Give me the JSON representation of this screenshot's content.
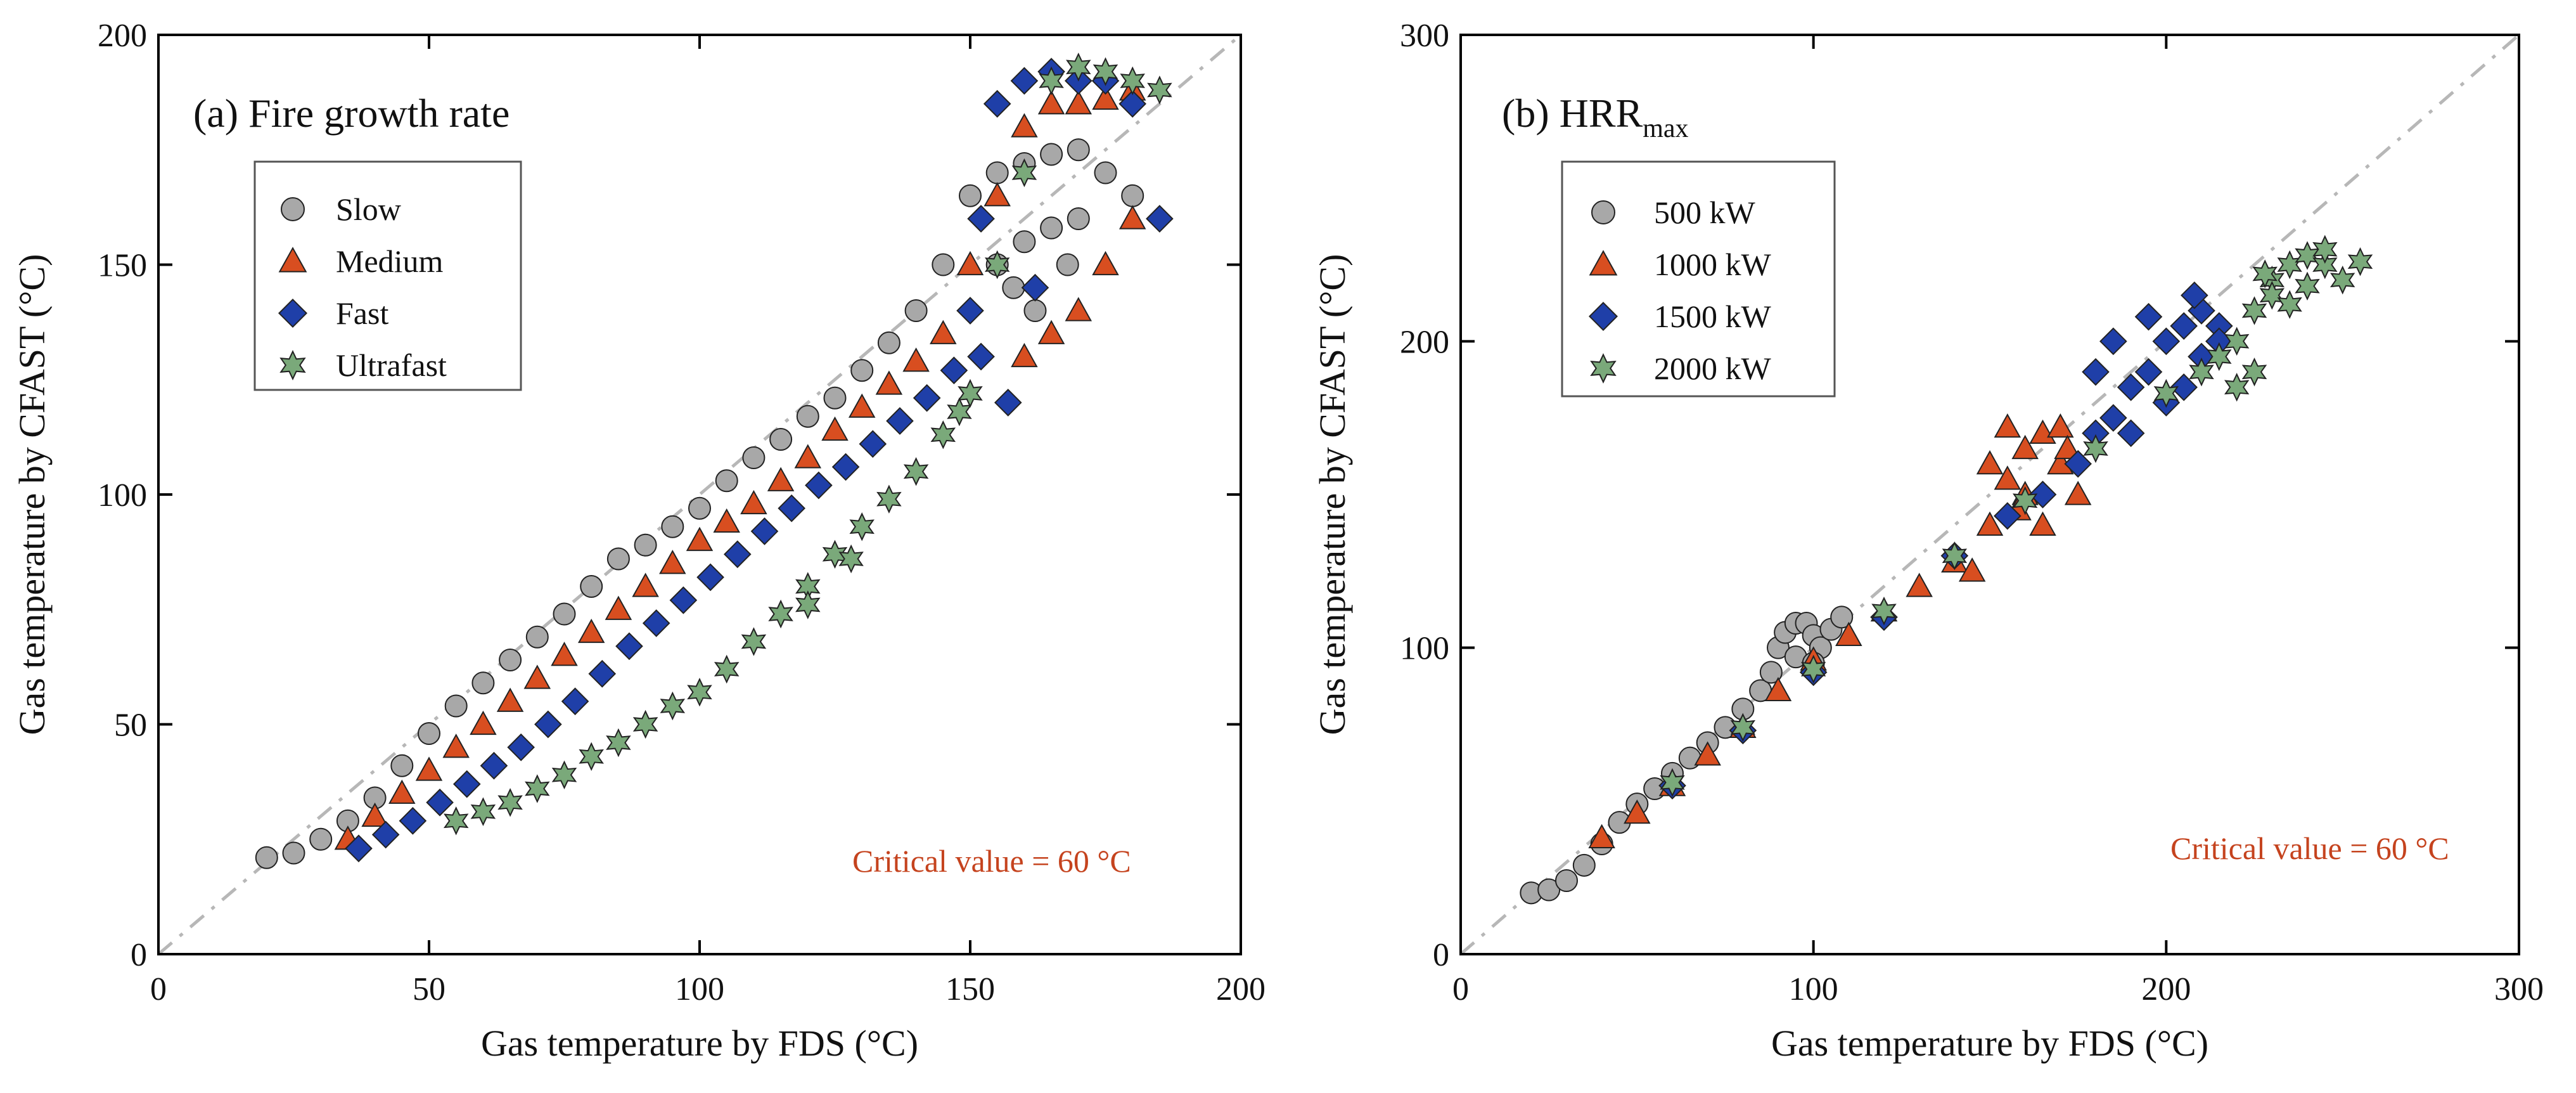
{
  "chart_data": [
    {
      "type": "scatter",
      "panel_title": "(a) Fire growth rate",
      "xlabel": "Gas temperature by FDS (°C)",
      "ylabel": "Gas temperature by CFAST (°C)",
      "xlim": [
        0,
        200
      ],
      "ylim": [
        0,
        200
      ],
      "xticks": [
        "0",
        "50",
        "100",
        "150",
        "200"
      ],
      "yticks": [
        "0",
        "50",
        "100",
        "150",
        "200"
      ],
      "annotation": "Critical value = 60 °C",
      "reference_line": "y = x",
      "series": [
        {
          "name": "Slow",
          "marker": "circle",
          "color": "#a8a8a8",
          "points": [
            [
              20,
              21
            ],
            [
              25,
              22
            ],
            [
              30,
              25
            ],
            [
              35,
              29
            ],
            [
              40,
              34
            ],
            [
              45,
              41
            ],
            [
              50,
              48
            ],
            [
              55,
              54
            ],
            [
              60,
              59
            ],
            [
              65,
              64
            ],
            [
              70,
              69
            ],
            [
              75,
              74
            ],
            [
              80,
              80
            ],
            [
              85,
              86
            ],
            [
              90,
              89
            ],
            [
              95,
              93
            ],
            [
              100,
              97
            ],
            [
              105,
              103
            ],
            [
              110,
              108
            ],
            [
              115,
              112
            ],
            [
              120,
              117
            ],
            [
              125,
              121
            ],
            [
              130,
              127
            ],
            [
              135,
              133
            ],
            [
              140,
              140
            ],
            [
              145,
              150
            ],
            [
              150,
              165
            ],
            [
              155,
              170
            ],
            [
              160,
              172
            ],
            [
              165,
              174
            ],
            [
              170,
              175
            ],
            [
              175,
              170
            ],
            [
              180,
              165
            ],
            [
              155,
              150
            ],
            [
              160,
              155
            ],
            [
              165,
              158
            ],
            [
              170,
              160
            ],
            [
              158,
              145
            ],
            [
              162,
              140
            ],
            [
              168,
              150
            ]
          ]
        },
        {
          "name": "Medium",
          "marker": "triangle",
          "color": "#d84e20",
          "points": [
            [
              35,
              25
            ],
            [
              40,
              30
            ],
            [
              45,
              35
            ],
            [
              50,
              40
            ],
            [
              55,
              45
            ],
            [
              60,
              50
            ],
            [
              65,
              55
            ],
            [
              70,
              60
            ],
            [
              75,
              65
            ],
            [
              80,
              70
            ],
            [
              85,
              75
            ],
            [
              90,
              80
            ],
            [
              95,
              85
            ],
            [
              100,
              90
            ],
            [
              105,
              94
            ],
            [
              110,
              98
            ],
            [
              115,
              103
            ],
            [
              120,
              108
            ],
            [
              125,
              114
            ],
            [
              130,
              119
            ],
            [
              135,
              124
            ],
            [
              140,
              129
            ],
            [
              145,
              135
            ],
            [
              150,
              150
            ],
            [
              155,
              165
            ],
            [
              160,
              180
            ],
            [
              165,
              185
            ],
            [
              170,
              185
            ],
            [
              175,
              186
            ],
            [
              180,
              188
            ],
            [
              160,
              130
            ],
            [
              165,
              135
            ],
            [
              170,
              140
            ],
            [
              175,
              150
            ],
            [
              180,
              160
            ]
          ]
        },
        {
          "name": "Fast",
          "marker": "diamond",
          "color": "#1f3fa8",
          "points": [
            [
              37,
              23
            ],
            [
              42,
              26
            ],
            [
              47,
              29
            ],
            [
              52,
              33
            ],
            [
              57,
              37
            ],
            [
              62,
              41
            ],
            [
              67,
              45
            ],
            [
              72,
              50
            ],
            [
              77,
              55
            ],
            [
              82,
              61
            ],
            [
              87,
              67
            ],
            [
              92,
              72
            ],
            [
              97,
              77
            ],
            [
              102,
              82
            ],
            [
              107,
              87
            ],
            [
              112,
              92
            ],
            [
              117,
              97
            ],
            [
              122,
              102
            ],
            [
              127,
              106
            ],
            [
              132,
              111
            ],
            [
              137,
              116
            ],
            [
              142,
              121
            ],
            [
              147,
              127
            ],
            [
              150,
              140
            ],
            [
              152,
              160
            ],
            [
              155,
              185
            ],
            [
              160,
              190
            ],
            [
              165,
              192
            ],
            [
              170,
              190
            ],
            [
              175,
              190
            ],
            [
              180,
              185
            ],
            [
              185,
              160
            ],
            [
              152,
              130
            ],
            [
              157,
              120
            ],
            [
              162,
              145
            ]
          ]
        },
        {
          "name": "Ultrafast",
          "marker": "star",
          "color": "#7aa97a",
          "points": [
            [
              55,
              29
            ],
            [
              60,
              31
            ],
            [
              65,
              33
            ],
            [
              70,
              36
            ],
            [
              75,
              39
            ],
            [
              80,
              43
            ],
            [
              85,
              46
            ],
            [
              90,
              50
            ],
            [
              95,
              54
            ],
            [
              100,
              57
            ],
            [
              105,
              62
            ],
            [
              110,
              68
            ],
            [
              115,
              74
            ],
            [
              120,
              80
            ],
            [
              125,
              87
            ],
            [
              130,
              93
            ],
            [
              135,
              99
            ],
            [
              140,
              105
            ],
            [
              145,
              113
            ],
            [
              148,
              118
            ],
            [
              150,
              122
            ],
            [
              155,
              150
            ],
            [
              160,
              170
            ],
            [
              165,
              190
            ],
            [
              170,
              193
            ],
            [
              175,
              192
            ],
            [
              180,
              190
            ],
            [
              185,
              188
            ],
            [
              120,
              76
            ],
            [
              128,
              86
            ]
          ]
        }
      ]
    },
    {
      "type": "scatter",
      "panel_title": "(b) HRR",
      "panel_title_sub": "max",
      "xlabel": "Gas temperature by FDS (°C)",
      "ylabel": "Gas temperature by CFAST (°C)",
      "xlim": [
        0,
        300
      ],
      "ylim": [
        0,
        300
      ],
      "xticks": [
        "0",
        "100",
        "200",
        "300"
      ],
      "yticks": [
        "0",
        "100",
        "200",
        "300"
      ],
      "annotation": "Critical value = 60 °C",
      "reference_line": "y = x",
      "series": [
        {
          "name": "500 kW",
          "marker": "circle",
          "color": "#a8a8a8",
          "points": [
            [
              20,
              20
            ],
            [
              25,
              21
            ],
            [
              30,
              24
            ],
            [
              35,
              29
            ],
            [
              40,
              36
            ],
            [
              45,
              43
            ],
            [
              50,
              49
            ],
            [
              55,
              54
            ],
            [
              60,
              59
            ],
            [
              65,
              64
            ],
            [
              70,
              69
            ],
            [
              75,
              74
            ],
            [
              80,
              80
            ],
            [
              85,
              86
            ],
            [
              88,
              92
            ],
            [
              90,
              100
            ],
            [
              92,
              105
            ],
            [
              95,
              108
            ],
            [
              98,
              108
            ],
            [
              100,
              104
            ],
            [
              102,
              100
            ],
            [
              105,
              106
            ],
            [
              108,
              110
            ],
            [
              95,
              97
            ],
            [
              100,
              95
            ]
          ]
        },
        {
          "name": "1000 kW",
          "marker": "triangle",
          "color": "#d84e20",
          "points": [
            [
              40,
              38
            ],
            [
              50,
              46
            ],
            [
              60,
              55
            ],
            [
              70,
              65
            ],
            [
              80,
              74
            ],
            [
              90,
              86
            ],
            [
              100,
              96
            ],
            [
              110,
              104
            ],
            [
              120,
              112
            ],
            [
              130,
              120
            ],
            [
              140,
              128
            ],
            [
              150,
              140
            ],
            [
              155,
              155
            ],
            [
              160,
              165
            ],
            [
              165,
              170
            ],
            [
              170,
              160
            ],
            [
              175,
              150
            ],
            [
              160,
              150
            ],
            [
              150,
              160
            ],
            [
              165,
              140
            ],
            [
              155,
              172
            ],
            [
              170,
              172
            ],
            [
              145,
              125
            ],
            [
              158,
              145
            ],
            [
              172,
              165
            ]
          ]
        },
        {
          "name": "1500 kW",
          "marker": "diamond",
          "color": "#1f3fa8",
          "points": [
            [
              60,
              55
            ],
            [
              80,
              73
            ],
            [
              100,
              92
            ],
            [
              120,
              110
            ],
            [
              140,
              130
            ],
            [
              155,
              143
            ],
            [
              165,
              150
            ],
            [
              175,
              160
            ],
            [
              180,
              170
            ],
            [
              185,
              175
            ],
            [
              190,
              185
            ],
            [
              195,
              190
            ],
            [
              200,
              200
            ],
            [
              205,
              205
            ],
            [
              210,
              210
            ],
            [
              215,
              205
            ],
            [
              185,
              200
            ],
            [
              195,
              208
            ],
            [
              210,
              195
            ],
            [
              205,
              185
            ],
            [
              190,
              170
            ],
            [
              200,
              180
            ],
            [
              215,
              200
            ],
            [
              180,
              190
            ],
            [
              208,
              215
            ]
          ]
        },
        {
          "name": "2000 kW",
          "marker": "star",
          "color": "#7aa97a",
          "points": [
            [
              60,
              56
            ],
            [
              80,
              74
            ],
            [
              100,
              93
            ],
            [
              120,
              112
            ],
            [
              140,
              130
            ],
            [
              160,
              148
            ],
            [
              180,
              165
            ],
            [
              200,
              183
            ],
            [
              210,
              190
            ],
            [
              215,
              195
            ],
            [
              220,
              200
            ],
            [
              225,
              210
            ],
            [
              230,
              220
            ],
            [
              235,
              225
            ],
            [
              240,
              228
            ],
            [
              245,
              225
            ],
            [
              250,
              220
            ],
            [
              255,
              226
            ],
            [
              230,
              215
            ],
            [
              240,
              218
            ],
            [
              225,
              190
            ],
            [
              220,
              185
            ],
            [
              228,
              222
            ],
            [
              245,
              230
            ],
            [
              235,
              212
            ]
          ]
        }
      ]
    }
  ]
}
